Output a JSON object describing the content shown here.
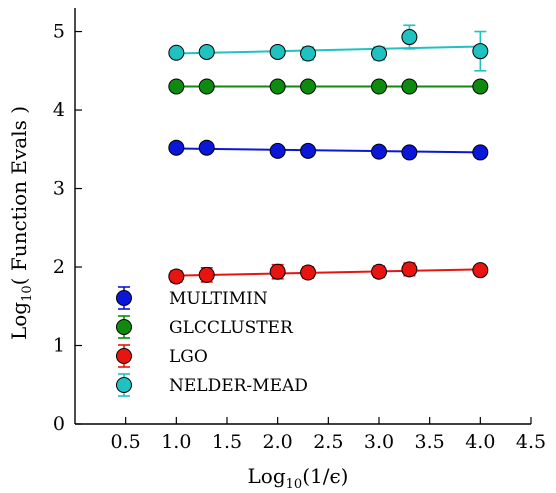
{
  "chart_data": {
    "type": "scatter",
    "title": "",
    "xlabel": {
      "base": "Log",
      "sub": "10",
      "rest": "(1/ϵ)"
    },
    "ylabel": {
      "base": "Log",
      "sub": "10",
      "rest": "( Function Evals )"
    },
    "xlim": [
      0,
      4.5
    ],
    "ylim": [
      0,
      5.3
    ],
    "xticks": [
      0.5,
      1.0,
      1.5,
      2.0,
      2.5,
      3.0,
      3.5,
      4.0,
      4.5
    ],
    "xtick_labels": [
      "0.5",
      "1.0",
      "1.5",
      "2.0",
      "2.5",
      "3.0",
      "3.5",
      "4.0",
      "4.5"
    ],
    "yticks": [
      0,
      1,
      2,
      3,
      4,
      5
    ],
    "ytick_labels": [
      "0",
      "1",
      "2",
      "3",
      "4",
      "5"
    ],
    "grid": false,
    "legend_position": "lower-left",
    "x": [
      1.0,
      1.3,
      2.0,
      2.3,
      3.0,
      3.3,
      4.0
    ],
    "series": [
      {
        "name": "MULTIMIN",
        "color": "#0a17d8",
        "values": [
          3.52,
          3.52,
          3.48,
          3.48,
          3.47,
          3.46,
          3.46
        ],
        "errors": [
          0.02,
          0.02,
          0.02,
          0.02,
          0.02,
          0.02,
          0.02
        ],
        "fit": [
          3.51,
          3.46
        ]
      },
      {
        "name": "GLCCLUSTER",
        "color": "#0e8a0e",
        "values": [
          4.3,
          4.3,
          4.3,
          4.3,
          4.3,
          4.3,
          4.3
        ],
        "errors": [
          0.01,
          0.01,
          0.01,
          0.01,
          0.01,
          0.01,
          0.01
        ],
        "fit": [
          4.3,
          4.3
        ]
      },
      {
        "name": "LGO",
        "color": "#e8140f",
        "values": [
          1.88,
          1.9,
          1.94,
          1.93,
          1.94,
          1.97,
          1.96
        ],
        "errors": [
          0.07,
          0.09,
          0.09,
          0.07,
          0.07,
          0.08,
          0.05
        ],
        "fit": [
          1.89,
          1.97
        ]
      },
      {
        "name": "NELDER-MEAD",
        "color": "#1fc1c1",
        "values": [
          4.73,
          4.74,
          4.74,
          4.72,
          4.72,
          4.93,
          4.75
        ],
        "errors": [
          0.04,
          0.03,
          0.04,
          0.08,
          0.08,
          0.15,
          0.25
        ],
        "fit": [
          4.72,
          4.81
        ]
      }
    ]
  }
}
